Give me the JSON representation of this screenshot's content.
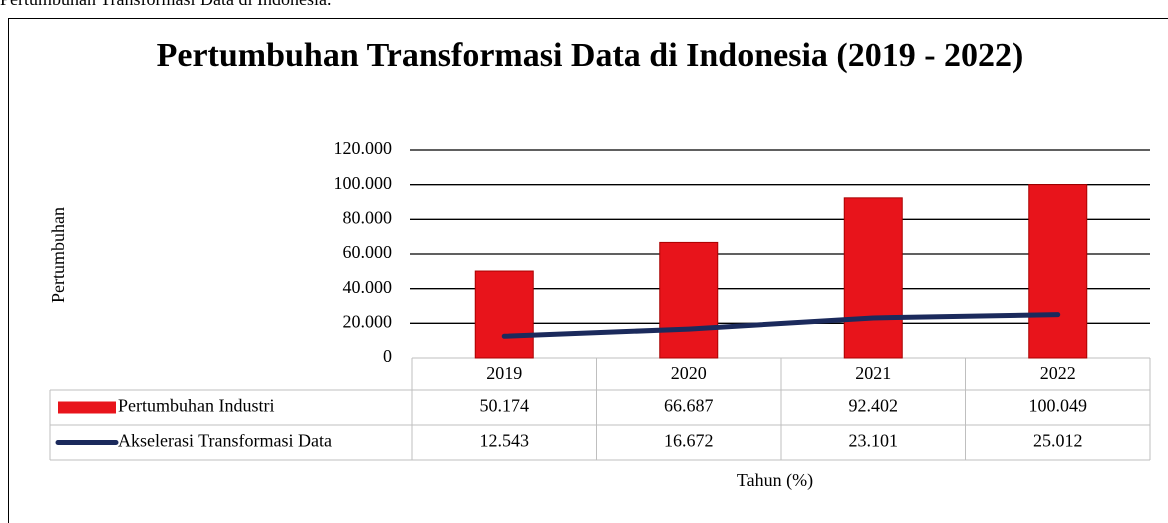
{
  "caption": "Pertumbuhan Transformasi Data di Indonesia.",
  "chart_data": {
    "type": "bar",
    "title": "Pertumbuhan Transformasi Data di Indonesia (2019 - 2022)",
    "y_label": "Pertumbuhan",
    "x_label": "Tahun (%)",
    "categories": [
      "2019",
      "2020",
      "2021",
      "2022"
    ],
    "series": [
      {
        "name": "Pertumbuhan Industri",
        "type": "bar",
        "color": "#e8141b",
        "values": [
          50174,
          66687,
          92402,
          100049
        ],
        "value_labels": [
          "50.174",
          "66.687",
          "92.402",
          "100.049"
        ]
      },
      {
        "name": "Akselerasi Transformasi Data",
        "type": "line",
        "color": "#1b2a5c",
        "values": [
          12543,
          16672,
          23101,
          25012
        ],
        "value_labels": [
          "12.543",
          "16.672",
          "23.101",
          "25.012"
        ]
      }
    ],
    "ylim": [
      0,
      120000
    ],
    "yticks": [
      0,
      {
        "value": 20000,
        "label": "20.000"
      },
      {
        "value": 40000,
        "label": "40.000"
      },
      {
        "value": 60000,
        "label": "60.000"
      },
      {
        "value": 80000,
        "label": "80.000"
      },
      {
        "value": 100000,
        "label": "100.000"
      },
      {
        "value": 120000,
        "label": "120.000"
      }
    ],
    "grid": true,
    "data_table": true
  }
}
